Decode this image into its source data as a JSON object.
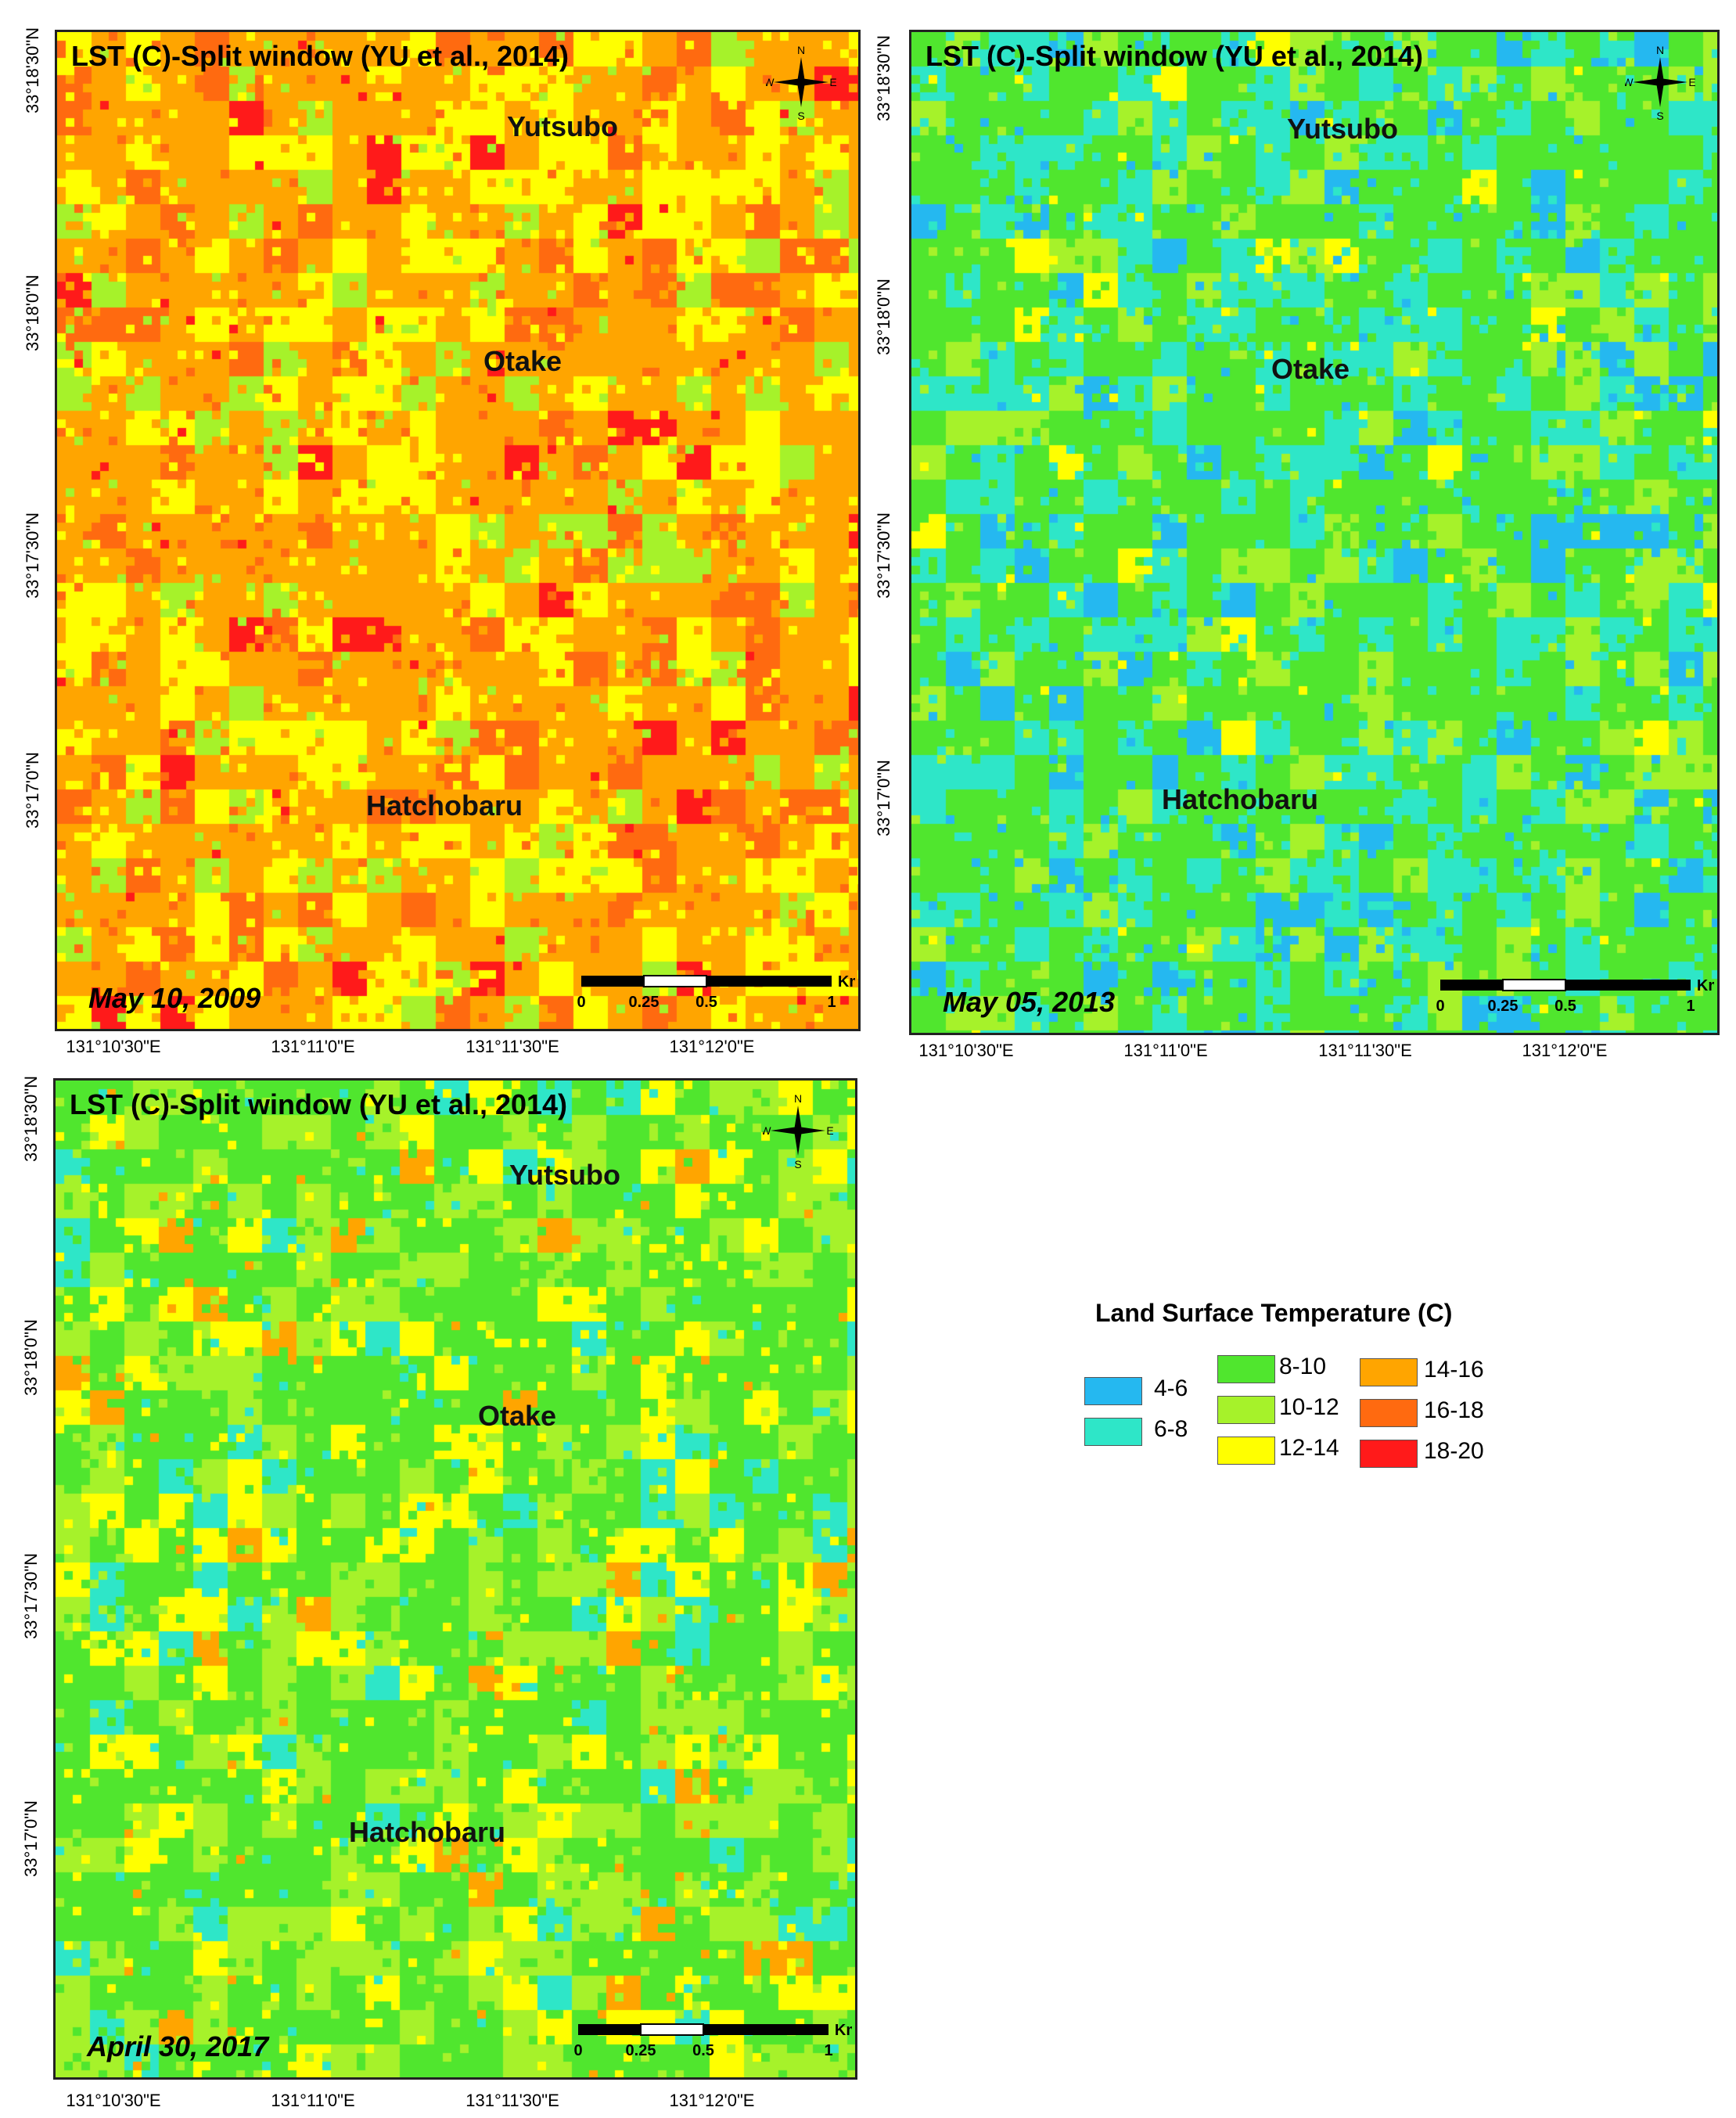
{
  "panels": [
    {
      "title": "LST (C)-Split window (YU et al., 2014)",
      "date": "May 10, 2009",
      "places": [
        "Yutsubo",
        "Otake",
        "Hatchobaru"
      ],
      "x_ticks": [
        "131°10'30\"E",
        "131°11'0\"E",
        "131°11'30\"E",
        "131°12'0\"E"
      ],
      "y_ticks": [
        "33°18'30\"N",
        "33°18'0\"N",
        "33°17'30\"N",
        "33°17'0\"N"
      ],
      "scale": {
        "labels": [
          "0",
          "0.25",
          "0.5",
          "1"
        ],
        "unit": "Km"
      },
      "compass": {
        "n": "N",
        "s": "S",
        "e": "E",
        "w": "W"
      },
      "dominant_classes": [
        "14-16",
        "12-14",
        "16-18",
        "10-12",
        "18-20"
      ]
    },
    {
      "title": "LST (C)-Split window (YU et al., 2014)",
      "date": "May 05, 2013",
      "places": [
        "Yutsubo",
        "Otake",
        "Hatchobaru"
      ],
      "x_ticks": [
        "131°10'30\"E",
        "131°11'0\"E",
        "131°11'30\"E",
        "131°12'0\"E"
      ],
      "y_ticks": [
        "33°18'30\"N",
        "33°18'0\"N",
        "33°17'30\"N",
        "33°17'0\"N"
      ],
      "scale": {
        "labels": [
          "0",
          "0.25",
          "0.5",
          "1"
        ],
        "unit": "Km"
      },
      "compass": {
        "n": "N",
        "s": "S",
        "e": "E",
        "w": "W"
      },
      "dominant_classes": [
        "8-10",
        "6-8",
        "10-12",
        "4-6",
        "12-14"
      ]
    },
    {
      "title": "LST (C)-Split window (YU et al., 2014)",
      "date": "April 30, 2017",
      "places": [
        "Yutsubo",
        "Otake",
        "Hatchobaru"
      ],
      "x_ticks": [
        "131°10'30\"E",
        "131°11'0\"E",
        "131°11'30\"E",
        "131°12'0\"E"
      ],
      "y_ticks": [
        "33°18'30\"N",
        "33°18'0\"N",
        "33°17'30\"N",
        "33°17'0\"N"
      ],
      "scale": {
        "labels": [
          "0",
          "0.25",
          "0.5",
          "1"
        ],
        "unit": "Km"
      },
      "compass": {
        "n": "N",
        "s": "S",
        "e": "E",
        "w": "W"
      },
      "dominant_classes": [
        "8-10",
        "10-12",
        "12-14",
        "6-8",
        "14-16"
      ]
    }
  ],
  "legend": {
    "title": "Land Surface Temperature (C)",
    "items": [
      {
        "label": "4-6",
        "color": "#25b8f0"
      },
      {
        "label": "6-8",
        "color": "#2ee6c8"
      },
      {
        "label": "8-10",
        "color": "#50e62e"
      },
      {
        "label": "10-12",
        "color": "#a6f22a"
      },
      {
        "label": "12-14",
        "color": "#ffff00"
      },
      {
        "label": "14-16",
        "color": "#ffa500"
      },
      {
        "label": "16-18",
        "color": "#ff6a10"
      },
      {
        "label": "18-20",
        "color": "#ff1a1a"
      }
    ]
  }
}
